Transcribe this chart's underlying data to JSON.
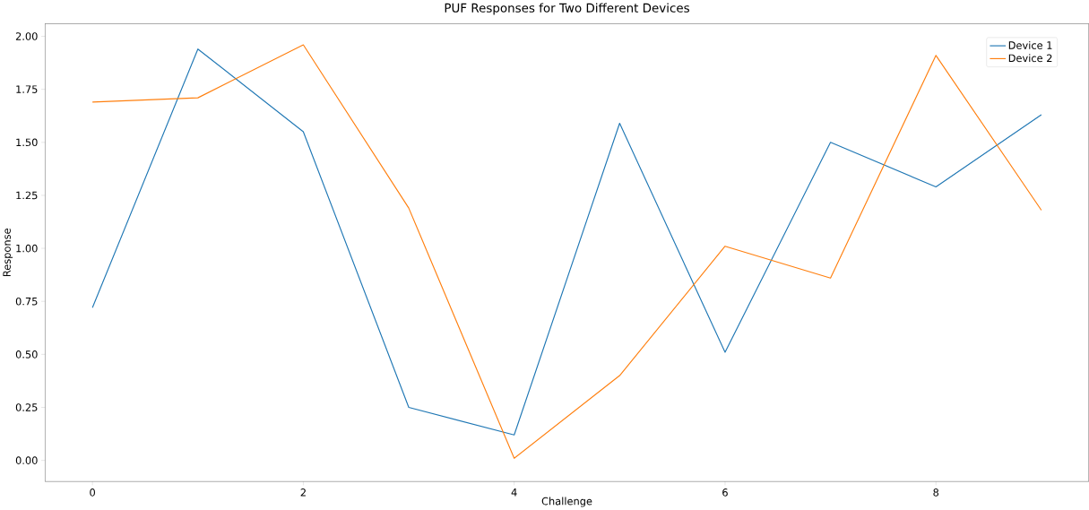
{
  "chart_data": {
    "type": "line",
    "title": "PUF Responses for Two Different Devices",
    "xlabel": "Challenge",
    "ylabel": "Response",
    "x": [
      0,
      1,
      2,
      3,
      4,
      5,
      6,
      7,
      8,
      9
    ],
    "series": [
      {
        "name": "Device 1",
        "color": "#1f77b4",
        "values": [
          0.72,
          1.94,
          1.55,
          0.25,
          0.12,
          1.59,
          0.51,
          1.5,
          1.29,
          1.63
        ]
      },
      {
        "name": "Device 2",
        "color": "#ff7f0e",
        "values": [
          1.69,
          1.71,
          1.96,
          1.19,
          0.01,
          0.4,
          1.01,
          0.86,
          1.91,
          1.18
        ]
      }
    ],
    "xlim": [
      -0.45,
      9.45
    ],
    "ylim": [
      -0.1,
      2.06
    ],
    "xticks": [
      0,
      2,
      4,
      6,
      8
    ],
    "yticks": [
      {
        "value": 0,
        "label": "0.00"
      },
      {
        "value": 0.25,
        "label": "0.25"
      },
      {
        "value": 0.5,
        "label": "0.50"
      },
      {
        "value": 0.75,
        "label": "0.75"
      },
      {
        "value": 1,
        "label": "1.00"
      },
      {
        "value": 1.25,
        "label": "1.25"
      },
      {
        "value": 1.5,
        "label": "1.50"
      },
      {
        "value": 1.75,
        "label": "1.75"
      },
      {
        "value": 2,
        "label": "2.00"
      }
    ],
    "legend": "top right",
    "grid": false
  }
}
